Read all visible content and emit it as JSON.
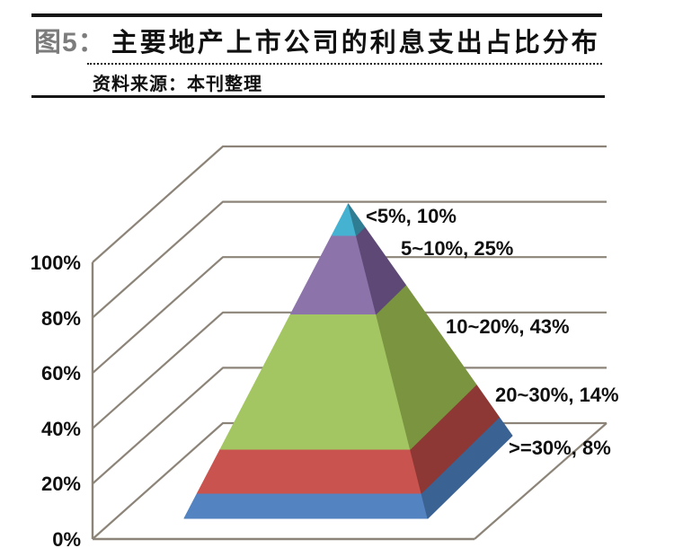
{
  "header": {
    "figure_label": "图5：",
    "title": "主要地产上市公司的利息支出占比分布",
    "source": "资料来源：本刊整理"
  },
  "chart_data": {
    "type": "pyramid",
    "subtype": "3d-stacked-pyramid",
    "title": "主要地产上市公司的利息支出占比分布",
    "xlabel": "",
    "ylabel": "",
    "ylim_pct": [
      0,
      100
    ],
    "yticks": [
      "0%",
      "20%",
      "40%",
      "60%",
      "80%",
      "100%"
    ],
    "grid": "on",
    "legend": "none",
    "gridline_color": "#8C8478",
    "categories_bottom_to_top": [
      ">=30%",
      "20~30%",
      "10~20%",
      "5~10%",
      "<5%"
    ],
    "values_pct": [
      8,
      14,
      43,
      25,
      10
    ],
    "point_labels": [
      ">=30%, 8%",
      "20~30%, 14%",
      "10~20%, 43%",
      "5~10%, 25%",
      "<5%, 10%"
    ],
    "segments": [
      {
        "range": ">=30%",
        "pct": 8,
        "label": ">=30%, 8%",
        "front_color": "#5483C1",
        "side_color": "#3A6293"
      },
      {
        "range": "20~30%",
        "pct": 14,
        "label": "20~30%, 14%",
        "front_color": "#C9544F",
        "side_color": "#8E3835"
      },
      {
        "range": "10~20%",
        "pct": 43,
        "label": "10~20%, 43%",
        "front_color": "#A3C662",
        "side_color": "#7A9440"
      },
      {
        "range": "5~10%",
        "pct": 25,
        "label": "5~10%, 25%",
        "front_color": "#8C74AB",
        "side_color": "#5D4876"
      },
      {
        "range": "<5%",
        "pct": 10,
        "label": "<5%, 10%",
        "front_color": "#45B2D2",
        "side_color": "#2E7D93"
      }
    ]
  }
}
